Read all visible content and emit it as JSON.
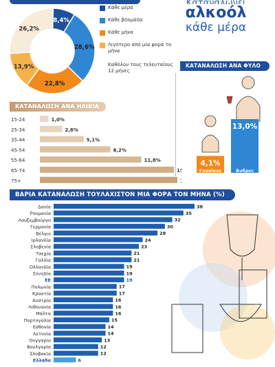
{
  "header": {
    "cut_title": "Καταναλώνει",
    "title": "αλκοόλ",
    "subtitle": "κάθε μέρα"
  },
  "sections": {
    "age_title": "ΚΑΤΑΝΑΛΩΣΗ ΑΝΑ ΗΛΙΚΙΑ",
    "sex_title": "ΚΑΤΑΝΑΛΩΣΗ ΑΝΑ ΦΥΛΟ",
    "heavy_title": "ΒΑΡΙΑ ΚΑΤΑΝΑΛΩΣΗ ΤΟΥΛΑΧΙΣΤΟΝ ΜΙΑ ΦΟΡΑ ΤΟΝ ΜΗΝΑ (%)"
  },
  "colors": {
    "navy": "#1f4f9c",
    "blue": "#2f86d3",
    "sky": "#3aa0e0",
    "orange": "#f08a1c",
    "beige": "#f6ead9",
    "tan": "#d9b48e",
    "greece_bar": "#4a9fd8",
    "eu_label": "#1f4f9c"
  },
  "chart_data": [
    {
      "type": "pie",
      "title": "",
      "series": [
        {
          "name": "Κάθε μέρα",
          "value": 8.4,
          "label": "8,4%",
          "color": "#1f4f9c"
        },
        {
          "name": "Κάθε βδομάδα",
          "value": 28.6,
          "label": "28,6%",
          "color": "#2f86d3"
        },
        {
          "name": "Κάθε μήνα",
          "value": 22.8,
          "label": "22,8%",
          "color": "#f08a1c"
        },
        {
          "name": "Λιγότερο από μία φορά το μήνα",
          "value": 13.9,
          "label": "13,9%",
          "color": "#f6b24a"
        },
        {
          "name": "Καθόλου τους τελευταίους 12 μήνες",
          "value": 26.2,
          "label": "26,2%",
          "color": "#f7ebd9"
        }
      ],
      "legend_position": "right"
    },
    {
      "type": "bar",
      "title": "ΚΑΤΑΝΑΛΩΣΗ ΑΝΑ ΗΛΙΚΙΑ",
      "orientation": "horizontal",
      "categories": [
        "15-24",
        "25-34",
        "35-44",
        "45-54",
        "55-64",
        "65-74",
        "75+"
      ],
      "values": [
        1.0,
        2.6,
        5.1,
        8.2,
        11.8,
        15.6,
        16
      ],
      "labels": [
        "1,0%",
        "2,6%",
        "5,1%",
        "8,2%",
        "11,8%",
        "15,6%",
        "16%"
      ],
      "xlim": [
        0,
        16
      ]
    },
    {
      "type": "bar",
      "title": "ΚΑΤΑΝΑΛΩΣΗ ΑΝΑ ΦΥΛΟ",
      "categories": [
        "Γυναίκες",
        "Άνδρες"
      ],
      "values": [
        4.1,
        13.0
      ],
      "labels": [
        "4,1%",
        "13,0%"
      ]
    },
    {
      "type": "bar",
      "title": "ΒΑΡΙΑ ΚΑΤΑΝΑΛΩΣΗ ΤΟΥΛΑΧΙΣΤΟΝ ΜΙΑ ΦΟΡΑ ΤΟΝ ΜΗΝΑ (%)",
      "orientation": "horizontal",
      "categories": [
        "Δανία",
        "Ρουμανία",
        "Λουξεμβούργο",
        "Γερμανία",
        "Βέλγιο",
        "Ιρλανδία",
        "Σλοβενία",
        "Τσεχία",
        "Γαλλία",
        "Ολλανδία",
        "Σουηδία",
        "ΕΕ",
        "Πολωνία",
        "Κροατία",
        "Αυστρία",
        "Λιθουανία",
        "Μάλτα",
        "Πορτογαλία",
        "Εσθονία",
        "Λετονία",
        "Ουγγαρία",
        "Βουλγαρία",
        "Σλοβακία",
        "Ελλάδα"
      ],
      "values": [
        38,
        35,
        32,
        30,
        28,
        24,
        23,
        21,
        21,
        19,
        19,
        19,
        17,
        17,
        16,
        16,
        16,
        15,
        14,
        14,
        13,
        12,
        12,
        6
      ],
      "highlight": [
        "ΕΕ",
        "Ελλάδα"
      ],
      "xlim": [
        0,
        38
      ]
    }
  ]
}
